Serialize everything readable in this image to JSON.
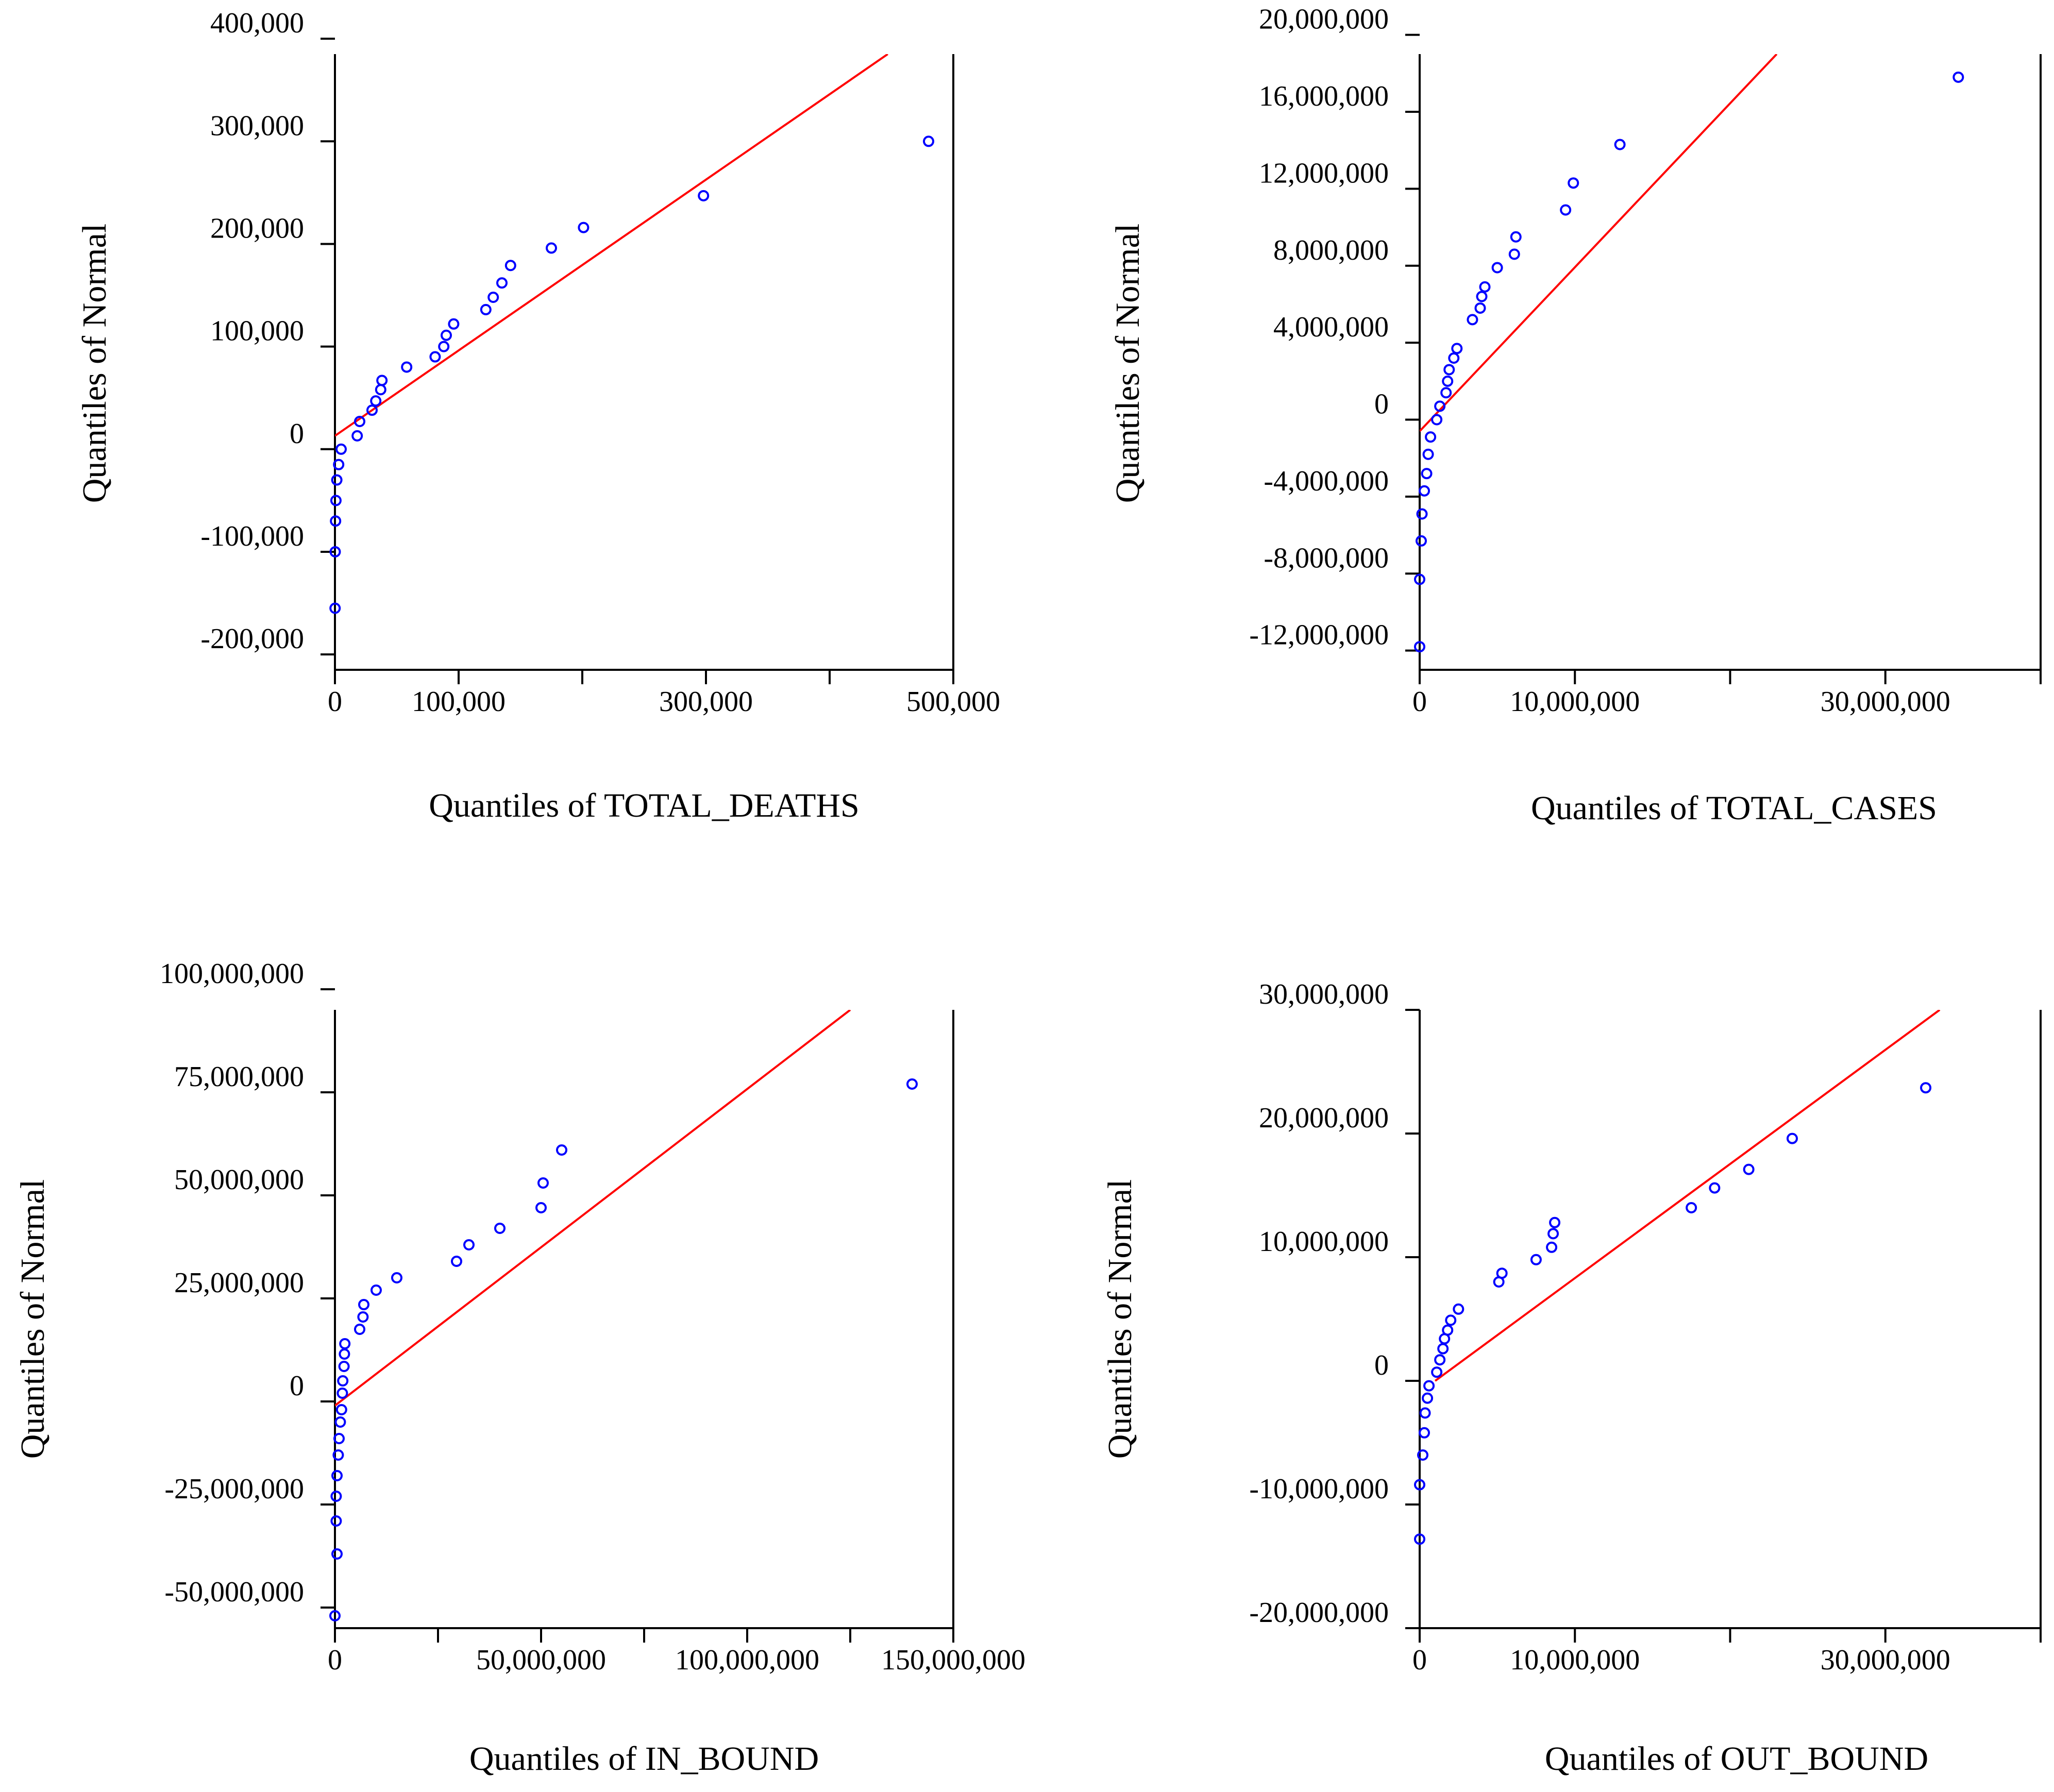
{
  "chart_data": [
    {
      "type": "scatter",
      "xlabel": "Quantiles of TOTAL_DEATHS",
      "ylabel": "Quantiles of Normal",
      "xlim": [
        0,
        500000
      ],
      "ylim": [
        -215000,
        385000
      ],
      "x_ticks": [
        0,
        100000,
        200000,
        300000,
        400000,
        500000
      ],
      "x_tick_labels": [
        "0",
        "100,000",
        "",
        "300,000",
        "",
        "500,000"
      ],
      "y_ticks": [
        -200000,
        -100000,
        0,
        100000,
        200000,
        300000,
        400000
      ],
      "y_tick_labels": [
        "-200,000",
        "-100,000",
        "0",
        "100,000",
        "200,000",
        "300,000",
        "400,000"
      ],
      "ref_line": [
        [
          0,
          13000
        ],
        [
          447000,
          385000
        ]
      ],
      "points": [
        [
          100,
          -155000
        ],
        [
          200,
          -100000
        ],
        [
          500,
          -70000
        ],
        [
          800,
          -50000
        ],
        [
          1500,
          -30000
        ],
        [
          3000,
          -15000
        ],
        [
          5000,
          0
        ],
        [
          18000,
          13000
        ],
        [
          20000,
          27000
        ],
        [
          30000,
          38000
        ],
        [
          33000,
          47000
        ],
        [
          37000,
          58000
        ],
        [
          38000,
          67000
        ],
        [
          58000,
          80000
        ],
        [
          81000,
          90000
        ],
        [
          88000,
          100000
        ],
        [
          90000,
          111000
        ],
        [
          96000,
          122000
        ],
        [
          122000,
          136000
        ],
        [
          128000,
          148000
        ],
        [
          135000,
          162000
        ],
        [
          142000,
          179000
        ],
        [
          175000,
          196000
        ],
        [
          201000,
          216000
        ],
        [
          298000,
          247000
        ],
        [
          480000,
          300000
        ]
      ]
    },
    {
      "type": "scatter",
      "xlabel": "Quantiles of TOTAL_CASES",
      "ylabel": "Quantiles of Normal",
      "xlim": [
        0,
        40000000
      ],
      "ylim": [
        -13000000,
        19000000
      ],
      "x_ticks": [
        0,
        10000000,
        20000000,
        30000000,
        40000000
      ],
      "x_tick_labels": [
        "0",
        "10,000,000",
        "",
        "30,000,000",
        ""
      ],
      "y_ticks": [
        -12000000,
        -8000000,
        -4000000,
        0,
        4000000,
        8000000,
        12000000,
        16000000,
        20000000
      ],
      "y_tick_labels": [
        "-12,000,000",
        "-8,000,000",
        "-4,000,000",
        "0",
        "4,000,000",
        "8,000,000",
        "12,000,000",
        "16,000,000",
        "20,000,000"
      ],
      "ref_line": [
        [
          0,
          -600000
        ],
        [
          23000000,
          19000000
        ]
      ],
      "points": [
        [
          0,
          -11800000
        ],
        [
          0,
          -8300000
        ],
        [
          100000,
          -6300000
        ],
        [
          150000,
          -4900000
        ],
        [
          300000,
          -3700000
        ],
        [
          450000,
          -2800000
        ],
        [
          550000,
          -1800000
        ],
        [
          700000,
          -900000
        ],
        [
          1100000,
          0
        ],
        [
          1300000,
          700000
        ],
        [
          1700000,
          1400000
        ],
        [
          1800000,
          2000000
        ],
        [
          1900000,
          2600000
        ],
        [
          2200000,
          3200000
        ],
        [
          2400000,
          3700000
        ],
        [
          3400000,
          5200000
        ],
        [
          3900000,
          5800000
        ],
        [
          4000000,
          6400000
        ],
        [
          4200000,
          6900000
        ],
        [
          5000000,
          7900000
        ],
        [
          6100000,
          8600000
        ],
        [
          6200000,
          9500000
        ],
        [
          9400000,
          10900000
        ],
        [
          9900000,
          12300000
        ],
        [
          12900000,
          14300000
        ],
        [
          34700000,
          17800000
        ]
      ]
    },
    {
      "type": "scatter",
      "xlabel": "Quantiles of IN_BOUND",
      "ylabel": "Quantiles of Normal",
      "xlim": [
        0,
        150000000
      ],
      "ylim": [
        -55000000,
        95000000
      ],
      "x_ticks": [
        0,
        25000000,
        50000000,
        75000000,
        100000000,
        125000000,
        150000000
      ],
      "x_tick_labels": [
        "0",
        "",
        "50,000,000",
        "",
        "100,000,000",
        "",
        "150,000,000"
      ],
      "y_ticks": [
        -50000000,
        -25000000,
        0,
        25000000,
        50000000,
        75000000,
        100000000
      ],
      "y_tick_labels": [
        "-50,000,000",
        "-25,000,000",
        "0",
        "25,000,000",
        "50,000,000",
        "75,000,000",
        "100,000,000"
      ],
      "ref_line": [
        [
          0,
          -1000000
        ],
        [
          125000000,
          95000000
        ]
      ],
      "points": [
        [
          0,
          -52000000
        ],
        [
          500000,
          -37000000
        ],
        [
          300000,
          -29000000
        ],
        [
          300000,
          -23000000
        ],
        [
          500000,
          -18000000
        ],
        [
          800000,
          -13000000
        ],
        [
          1000000,
          -9000000
        ],
        [
          1300000,
          -5000000
        ],
        [
          1600000,
          -2000000
        ],
        [
          1800000,
          2000000
        ],
        [
          1900000,
          5000000
        ],
        [
          2200000,
          8500000
        ],
        [
          2300000,
          11500000
        ],
        [
          2400000,
          14000000
        ],
        [
          6000000,
          17500000
        ],
        [
          6800000,
          20500000
        ],
        [
          7000000,
          23500000
        ],
        [
          10000000,
          27000000
        ],
        [
          15000000,
          30000000
        ],
        [
          29500000,
          34000000
        ],
        [
          32500000,
          38000000
        ],
        [
          40000000,
          42000000
        ],
        [
          50000000,
          47000000
        ],
        [
          50500000,
          53000000
        ],
        [
          55000000,
          61000000
        ],
        [
          140000000,
          77000000
        ]
      ]
    },
    {
      "type": "scatter",
      "xlabel": "Quantiles of OUT_BOUND",
      "ylabel": "Quantiles of Normal",
      "xlim": [
        0,
        40000000
      ],
      "ylim": [
        -20000000,
        30000000
      ],
      "x_ticks": [
        0,
        10000000,
        20000000,
        30000000,
        40000000
      ],
      "x_tick_labels": [
        "0",
        "10,000,000",
        "",
        "30,000,000",
        ""
      ],
      "y_ticks": [
        -20000000,
        -10000000,
        0,
        10000000,
        20000000,
        30000000
      ],
      "y_tick_labels": [
        "-20,000,000",
        "-10,000,000",
        "0",
        "10,000,000",
        "20,000,000",
        "30,000,000"
      ],
      "ref_line": [
        [
          1000000,
          0
        ],
        [
          33500000,
          30000000
        ]
      ],
      "points": [
        [
          0,
          -12800000
        ],
        [
          0,
          -8400000
        ],
        [
          200000,
          -6000000
        ],
        [
          300000,
          -4200000
        ],
        [
          350000,
          -2600000
        ],
        [
          500000,
          -1400000
        ],
        [
          600000,
          -400000
        ],
        [
          1100000,
          700000
        ],
        [
          1300000,
          1700000
        ],
        [
          1500000,
          2600000
        ],
        [
          1600000,
          3400000
        ],
        [
          1800000,
          4100000
        ],
        [
          2000000,
          4900000
        ],
        [
          2500000,
          5800000
        ],
        [
          5100000,
          8000000
        ],
        [
          5300000,
          8700000
        ],
        [
          7500000,
          9800000
        ],
        [
          8500000,
          10800000
        ],
        [
          8600000,
          11900000
        ],
        [
          8700000,
          12800000
        ],
        [
          17500000,
          14000000
        ],
        [
          19000000,
          15600000
        ],
        [
          21200000,
          17100000
        ],
        [
          24000000,
          19600000
        ],
        [
          32600000,
          23700000
        ]
      ]
    }
  ]
}
